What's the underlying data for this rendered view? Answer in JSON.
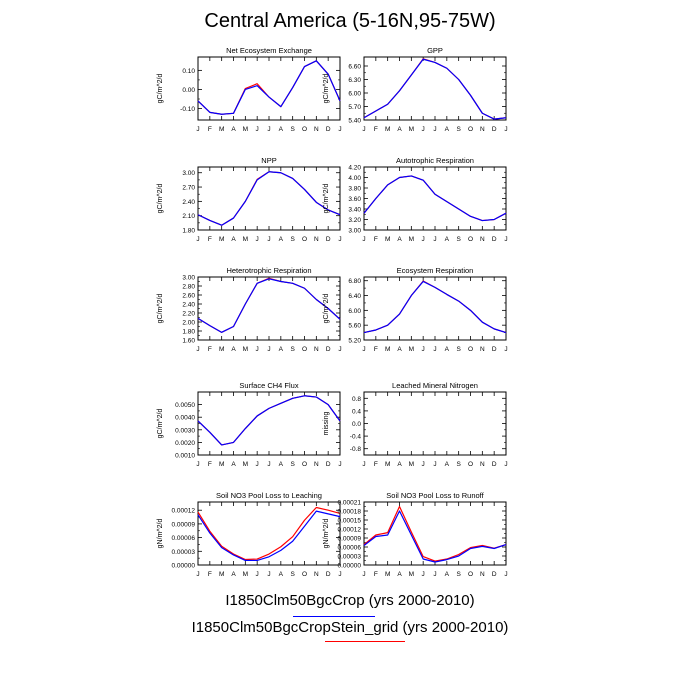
{
  "title": "Central America (5-16N,95-75W)",
  "legend": {
    "case1": "I1850Clm50BgcCrop (yrs 2000-2010)",
    "case1_color": "#0000ff",
    "case2": "I1850Clm50BgcCropStein_grid (yrs 2000-2010)",
    "case2_color": "#ff0000"
  },
  "chart_data": [
    {
      "type": "line",
      "title": "Net Ecosystem Exchange",
      "ylabel": "gC/m^2/d",
      "x": [
        "J",
        "F",
        "M",
        "A",
        "M",
        "J",
        "J",
        "A",
        "S",
        "O",
        "N",
        "D",
        "J"
      ],
      "ylim": [
        -0.16,
        0.17
      ],
      "yticks": [
        "-0.10",
        "0.00",
        "0.10"
      ],
      "yticks_values": [
        -0.1,
        0.0,
        0.1
      ],
      "series": [
        {
          "color": "#0000ff",
          "values": [
            -0.06,
            -0.12,
            -0.13,
            -0.125,
            0.0,
            0.02,
            -0.04,
            -0.09,
            0.01,
            0.12,
            0.15,
            0.08,
            -0.06
          ]
        },
        {
          "color": "#ff0000",
          "values": [
            -0.06,
            -0.12,
            -0.13,
            -0.125,
            0.005,
            0.03,
            -0.04,
            -0.09,
            0.01,
            0.12,
            0.15,
            0.08,
            -0.06
          ]
        }
      ]
    },
    {
      "type": "line",
      "title": "GPP",
      "ylabel": "gC/m^2/d",
      "x": [
        "J",
        "F",
        "M",
        "A",
        "M",
        "J",
        "J",
        "A",
        "S",
        "O",
        "N",
        "D",
        "J"
      ],
      "ylim": [
        5.4,
        6.8
      ],
      "yticks": [
        "5.40",
        "5.70",
        "6.00",
        "6.30",
        "6.60"
      ],
      "yticks_values": [
        5.4,
        5.7,
        6.0,
        6.3,
        6.6
      ],
      "series": [
        {
          "color": "#0000ff",
          "values": [
            5.45,
            5.6,
            5.75,
            6.05,
            6.4,
            6.75,
            6.68,
            6.55,
            6.3,
            5.95,
            5.55,
            5.42,
            5.45
          ]
        },
        {
          "color": "#ff0000",
          "values": [
            5.45,
            5.6,
            5.75,
            6.05,
            6.4,
            6.76,
            6.68,
            6.55,
            6.3,
            5.95,
            5.55,
            5.42,
            5.45
          ]
        }
      ]
    },
    {
      "type": "line",
      "title": "NPP",
      "ylabel": "gC/m^2/d",
      "x": [
        "J",
        "F",
        "M",
        "A",
        "M",
        "J",
        "J",
        "A",
        "S",
        "O",
        "N",
        "D",
        "J"
      ],
      "ylim": [
        1.8,
        3.12
      ],
      "yticks": [
        "1.80",
        "2.10",
        "2.40",
        "2.70",
        "3.00"
      ],
      "yticks_values": [
        1.8,
        2.1,
        2.4,
        2.7,
        3.0
      ],
      "series": [
        {
          "color": "#0000ff",
          "values": [
            2.12,
            2.0,
            1.9,
            2.05,
            2.4,
            2.85,
            3.02,
            3.0,
            2.88,
            2.65,
            2.38,
            2.22,
            2.12
          ]
        },
        {
          "color": "#ff0000",
          "values": [
            2.12,
            2.0,
            1.9,
            2.05,
            2.4,
            2.86,
            3.02,
            3.0,
            2.88,
            2.65,
            2.38,
            2.22,
            2.12
          ]
        }
      ]
    },
    {
      "type": "line",
      "title": "Autotrophic Respiration",
      "ylabel": "gC/m^2/d",
      "x": [
        "J",
        "F",
        "M",
        "A",
        "M",
        "J",
        "J",
        "A",
        "S",
        "O",
        "N",
        "D",
        "J"
      ],
      "ylim": [
        3.0,
        4.2
      ],
      "yticks": [
        "3.00",
        "3.20",
        "3.40",
        "3.60",
        "3.80",
        "4.00",
        "4.20"
      ],
      "yticks_values": [
        3.0,
        3.2,
        3.4,
        3.6,
        3.8,
        4.0,
        4.2
      ],
      "series": [
        {
          "color": "#0000ff",
          "values": [
            3.32,
            3.6,
            3.86,
            4.0,
            4.03,
            3.95,
            3.68,
            3.54,
            3.4,
            3.26,
            3.18,
            3.2,
            3.32
          ]
        },
        {
          "color": "#ff0000",
          "values": [
            3.32,
            3.6,
            3.86,
            4.0,
            4.03,
            3.95,
            3.68,
            3.54,
            3.4,
            3.26,
            3.18,
            3.2,
            3.32
          ]
        }
      ]
    },
    {
      "type": "line",
      "title": "Heterotrophic Respiration",
      "ylabel": "gC/m^2/d",
      "x": [
        "J",
        "F",
        "M",
        "A",
        "M",
        "J",
        "J",
        "A",
        "S",
        "O",
        "N",
        "D",
        "J"
      ],
      "ylim": [
        1.6,
        3.0
      ],
      "yticks": [
        "1.60",
        "1.80",
        "2.00",
        "2.20",
        "2.40",
        "2.60",
        "2.80",
        "3.00"
      ],
      "yticks_values": [
        1.6,
        1.8,
        2.0,
        2.2,
        2.4,
        2.6,
        2.8,
        3.0
      ],
      "series": [
        {
          "color": "#0000ff",
          "values": [
            2.08,
            1.92,
            1.77,
            1.9,
            2.4,
            2.86,
            2.96,
            2.9,
            2.86,
            2.75,
            2.5,
            2.3,
            2.06
          ]
        },
        {
          "color": "#ff0000",
          "values": [
            2.08,
            1.92,
            1.77,
            1.9,
            2.4,
            2.86,
            2.97,
            2.9,
            2.86,
            2.75,
            2.5,
            2.3,
            2.06
          ]
        }
      ]
    },
    {
      "type": "line",
      "title": "Ecosystem Respiration",
      "ylabel": "gC/m^2/d",
      "x": [
        "J",
        "F",
        "M",
        "A",
        "M",
        "J",
        "J",
        "A",
        "S",
        "O",
        "N",
        "D",
        "J"
      ],
      "ylim": [
        5.2,
        6.9
      ],
      "yticks": [
        "5.20",
        "5.60",
        "6.00",
        "6.40",
        "6.80"
      ],
      "yticks_values": [
        5.2,
        5.6,
        6.0,
        6.4,
        6.8
      ],
      "series": [
        {
          "color": "#0000ff",
          "values": [
            5.4,
            5.47,
            5.6,
            5.9,
            6.4,
            6.78,
            6.62,
            6.43,
            6.25,
            6.0,
            5.68,
            5.5,
            5.4
          ]
        },
        {
          "color": "#ff0000",
          "values": [
            5.4,
            5.47,
            5.6,
            5.9,
            6.4,
            6.79,
            6.62,
            6.43,
            6.25,
            6.0,
            5.68,
            5.5,
            5.4
          ]
        }
      ]
    },
    {
      "type": "line",
      "title": "Surface CH4 Flux",
      "ylabel": "gC/m^2/d",
      "x": [
        "J",
        "F",
        "M",
        "A",
        "M",
        "J",
        "J",
        "A",
        "S",
        "O",
        "N",
        "D",
        "J"
      ],
      "ylim": [
        0.001,
        0.006
      ],
      "yticks": [
        "0.0010",
        "0.0020",
        "0.0030",
        "0.0040",
        "0.0050"
      ],
      "yticks_values": [
        0.001,
        0.002,
        0.003,
        0.004,
        0.005
      ],
      "series": [
        {
          "color": "#0000ff",
          "values": [
            0.0037,
            0.0028,
            0.0018,
            0.002,
            0.0031,
            0.0041,
            0.0047,
            0.0051,
            0.0055,
            0.0057,
            0.0056,
            0.005,
            0.0037
          ]
        },
        {
          "color": "#ff0000",
          "values": [
            0.0037,
            0.0028,
            0.0018,
            0.002,
            0.0031,
            0.0041,
            0.0047,
            0.0051,
            0.0055,
            0.0057,
            0.0056,
            0.005,
            0.0037
          ]
        }
      ]
    },
    {
      "type": "line",
      "title": "Leached Mineral Nitrogen",
      "ylabel": "missing",
      "x": [
        "J",
        "F",
        "M",
        "A",
        "M",
        "J",
        "J",
        "A",
        "S",
        "O",
        "N",
        "D",
        "J"
      ],
      "ylim": [
        -1.0,
        1.0
      ],
      "yticks": [
        "-0.8",
        "-0.4",
        "0.0",
        "0.4",
        "0.8"
      ],
      "yticks_values": [
        -0.8,
        -0.4,
        0.0,
        0.4,
        0.8
      ],
      "series": []
    },
    {
      "type": "line",
      "title": "Soil NO3 Pool Loss to Leaching",
      "ylabel": "gN/m^2/d",
      "x": [
        "J",
        "F",
        "M",
        "A",
        "M",
        "J",
        "J",
        "A",
        "S",
        "O",
        "N",
        "D",
        "J"
      ],
      "ylim": [
        0.0,
        0.000138
      ],
      "yticks": [
        "0.00000",
        "0.00003",
        "0.00006",
        "0.00009",
        "0.00012"
      ],
      "yticks_values": [
        0.0,
        3e-05,
        6e-05,
        9e-05,
        0.00012
      ],
      "series": [
        {
          "color": "#0000ff",
          "values": [
            0.00011,
            7e-05,
            3.8e-05,
            2.2e-05,
            1e-05,
            1e-05,
            1.8e-05,
            3.2e-05,
            5.2e-05,
            8.5e-05,
            0.000118,
            0.000112,
            0.000106
          ]
        },
        {
          "color": "#ff0000",
          "values": [
            0.000116,
            7.4e-05,
            4.1e-05,
            2.4e-05,
            1.2e-05,
            1.3e-05,
            2.4e-05,
            4e-05,
            6.2e-05,
            9.8e-05,
            0.000126,
            0.00012,
            0.000113
          ]
        }
      ]
    },
    {
      "type": "line",
      "title": "Soil NO3 Pool Loss to Runoff",
      "ylabel": "gN/m^2/d",
      "x": [
        "J",
        "F",
        "M",
        "A",
        "M",
        "J",
        "J",
        "A",
        "S",
        "O",
        "N",
        "D",
        "J"
      ],
      "ylim": [
        0.0,
        0.00021
      ],
      "yticks": [
        "0.00000",
        "0.00003",
        "0.00006",
        "0.00009",
        "0.00012",
        "0.00015",
        "0.00018",
        "0.00021"
      ],
      "yticks_values": [
        0.0,
        3e-05,
        6e-05,
        9e-05,
        0.00012,
        0.00015,
        0.00018,
        0.00021
      ],
      "series": [
        {
          "color": "#0000ff",
          "values": [
            6.5e-05,
            9.5e-05,
            0.0001,
            0.00018,
            0.0001,
            2e-05,
            1e-05,
            1.8e-05,
            3e-05,
            5.5e-05,
            6.2e-05,
            5.5e-05,
            6.8e-05
          ]
        },
        {
          "color": "#ff0000",
          "values": [
            6.8e-05,
            0.0001,
            0.000108,
            0.000195,
            0.00011,
            2.8e-05,
            1.3e-05,
            2e-05,
            3.5e-05,
            5.8e-05,
            6.5e-05,
            5.6e-05,
            6.8e-05
          ]
        }
      ]
    }
  ]
}
